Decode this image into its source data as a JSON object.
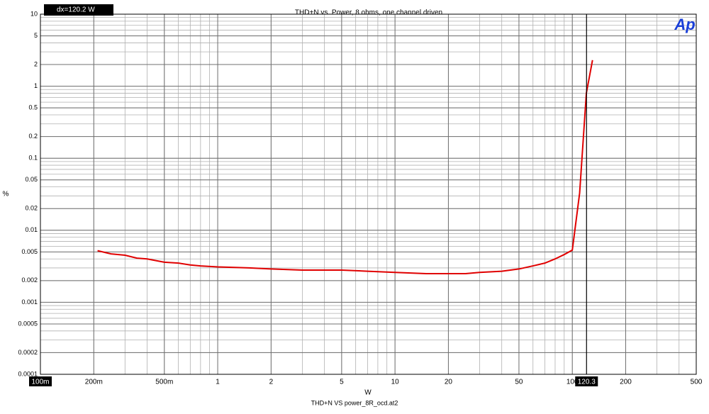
{
  "chart_data": {
    "type": "line",
    "title": "THD+N vs. Power, 8 ohms, one channel driven",
    "xlabel": "W",
    "ylabel": "%",
    "footer": "THD+N VS power_8R_ocd.at2",
    "logo": "Ap",
    "readout": "dx=120.2  W",
    "cursor_x": 120.3,
    "log_x": true,
    "log_y": true,
    "grid": true,
    "xlim": [
      0.1,
      500
    ],
    "ylim": [
      0.0001,
      10
    ],
    "xticks": [
      {
        "value": 0.1,
        "label": "100m"
      },
      {
        "value": 0.2,
        "label": "200m"
      },
      {
        "value": 0.5,
        "label": "500m"
      },
      1,
      2,
      5,
      10,
      20,
      50,
      100,
      200,
      500
    ],
    "yticks": [
      0.0001,
      0.0002,
      0.0005,
      0.001,
      0.002,
      0.005,
      0.01,
      0.02,
      0.05,
      0.1,
      0.2,
      0.5,
      1,
      2,
      5,
      10
    ],
    "series": [
      {
        "name": "THD+N",
        "color": "#e00000",
        "x": [
          0.21,
          0.25,
          0.3,
          0.35,
          0.4,
          0.5,
          0.6,
          0.7,
          0.8,
          1,
          1.5,
          2,
          3,
          5,
          7,
          10,
          15,
          20,
          25,
          30,
          40,
          50,
          60,
          70,
          80,
          90,
          100,
          110,
          120,
          130
        ],
        "values": [
          0.0052,
          0.0047,
          0.0045,
          0.0041,
          0.004,
          0.0036,
          0.0035,
          0.0033,
          0.0032,
          0.0031,
          0.003,
          0.0029,
          0.0028,
          0.0028,
          0.0027,
          0.0026,
          0.0025,
          0.0025,
          0.0025,
          0.0026,
          0.0027,
          0.0029,
          0.0032,
          0.0035,
          0.004,
          0.0046,
          0.0053,
          0.033,
          0.8,
          2.3
        ]
      }
    ]
  }
}
